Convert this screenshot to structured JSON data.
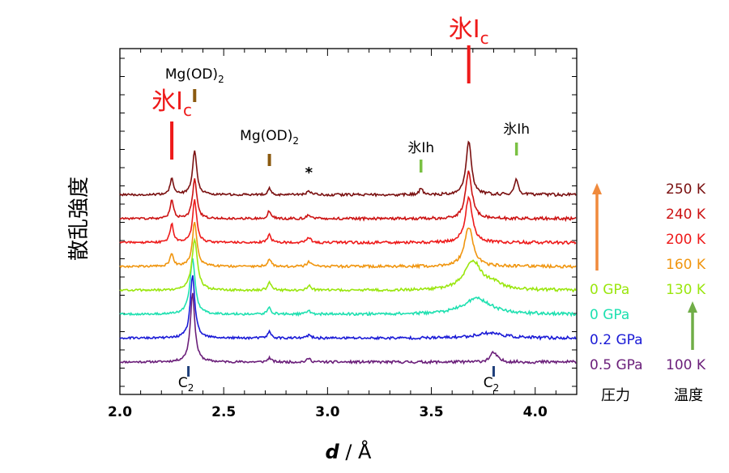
{
  "chart_data": {
    "type": "line",
    "xlabel_italic": "d",
    "xlabel_rest": " / Å",
    "ylabel": "散乱強度",
    "xlim": [
      2.0,
      4.2
    ],
    "xticks": [
      "2.0",
      "2.5",
      "3.0",
      "3.5",
      "4.0"
    ],
    "series": [
      {
        "pressure": "0.5 GPa",
        "temperature": "100 K",
        "color": "#6b1f7a",
        "offset": 0,
        "peaks": [
          [
            2.35,
            1.3,
            0.013
          ],
          [
            2.72,
            0.08,
            0.01
          ],
          [
            2.91,
            0.07,
            0.01
          ],
          [
            3.8,
            0.18,
            0.02
          ]
        ]
      },
      {
        "pressure": "0.2 GPa",
        "temperature": "",
        "color": "#1a1ad6",
        "offset": 1,
        "peaks": [
          [
            2.35,
            1.2,
            0.013
          ],
          [
            2.72,
            0.12,
            0.01
          ],
          [
            2.91,
            0.06,
            0.01
          ],
          [
            3.78,
            0.1,
            0.08
          ]
        ]
      },
      {
        "pressure": "0 GPa",
        "temperature": "",
        "color": "#1ee0b0",
        "offset": 2,
        "peaks": [
          [
            2.35,
            1.05,
            0.015
          ],
          [
            2.72,
            0.12,
            0.01
          ],
          [
            2.91,
            0.07,
            0.01
          ],
          [
            3.72,
            0.3,
            0.08
          ]
        ]
      },
      {
        "pressure": "0 GPa",
        "temperature": "130 K",
        "color": "#9ae60e",
        "offset": 3,
        "peaks": [
          [
            2.36,
            0.95,
            0.016
          ],
          [
            2.72,
            0.15,
            0.01
          ],
          [
            2.91,
            0.1,
            0.01
          ],
          [
            3.7,
            0.55,
            0.05
          ],
          [
            3.8,
            0.1,
            0.05
          ]
        ]
      },
      {
        "pressure": "",
        "temperature": "160 K",
        "color": "#f0950e",
        "offset": 4,
        "peaks": [
          [
            2.25,
            0.25,
            0.01
          ],
          [
            2.36,
            0.85,
            0.013
          ],
          [
            2.72,
            0.15,
            0.01
          ],
          [
            2.91,
            0.1,
            0.01
          ],
          [
            3.68,
            0.75,
            0.025
          ]
        ]
      },
      {
        "pressure": "",
        "temperature": "200 K",
        "color": "#ee1a1a",
        "offset": 5,
        "peaks": [
          [
            2.25,
            0.35,
            0.01
          ],
          [
            2.36,
            0.8,
            0.012
          ],
          [
            2.72,
            0.15,
            0.01
          ],
          [
            2.91,
            0.1,
            0.01
          ],
          [
            3.68,
            0.85,
            0.02
          ]
        ]
      },
      {
        "pressure": "",
        "temperature": "240 K",
        "color": "#cc1212",
        "offset": 6,
        "peaks": [
          [
            2.25,
            0.35,
            0.01
          ],
          [
            2.36,
            0.75,
            0.012
          ],
          [
            2.72,
            0.15,
            0.01
          ],
          [
            2.91,
            0.08,
            0.01
          ],
          [
            3.68,
            0.9,
            0.018
          ]
        ]
      },
      {
        "pressure": "",
        "temperature": "250 K",
        "color": "#7a1010",
        "offset": 7,
        "peaks": [
          [
            2.25,
            0.3,
            0.01
          ],
          [
            2.36,
            0.85,
            0.012
          ],
          [
            2.72,
            0.12,
            0.01
          ],
          [
            2.91,
            0.08,
            0.01
          ],
          [
            3.45,
            0.12,
            0.01
          ],
          [
            3.68,
            1.0,
            0.016
          ],
          [
            3.91,
            0.3,
            0.01
          ]
        ]
      }
    ],
    "annotations": [
      {
        "kind": "ticklabel",
        "d": 2.25,
        "color": "#ee1a1a",
        "main": "氷I",
        "sub": "c"
      },
      {
        "kind": "ticklabel",
        "d": 3.68,
        "color": "#ee1a1a",
        "main": "氷I",
        "sub": "c"
      },
      {
        "kind": "ticklabel",
        "d": 2.36,
        "color": "#8b5a10",
        "main": "Mg(OD)",
        "sub": "2"
      },
      {
        "kind": "ticklabel",
        "d": 2.72,
        "color": "#8b5a10",
        "main": "Mg(OD)",
        "sub": "2"
      },
      {
        "kind": "ticklabel",
        "d": 3.45,
        "color": "#7ac143",
        "main": "氷Ih",
        "sub": ""
      },
      {
        "kind": "ticklabel",
        "d": 3.91,
        "color": "#7ac143",
        "main": "氷Ih",
        "sub": ""
      },
      {
        "kind": "star",
        "d": 2.91,
        "text": "*"
      },
      {
        "kind": "bottom",
        "d": 2.33,
        "color": "#1f3f7a",
        "main": "C",
        "sub": "2"
      },
      {
        "kind": "bottom",
        "d": 3.8,
        "color": "#1f3f7a",
        "main": "C",
        "sub": "2"
      }
    ],
    "legend": {
      "pressure_title": "圧力",
      "temperature_title": "温度",
      "pressure_arrow_color": "#f08a3c",
      "temperature_arrow_color": "#70ad47"
    }
  }
}
